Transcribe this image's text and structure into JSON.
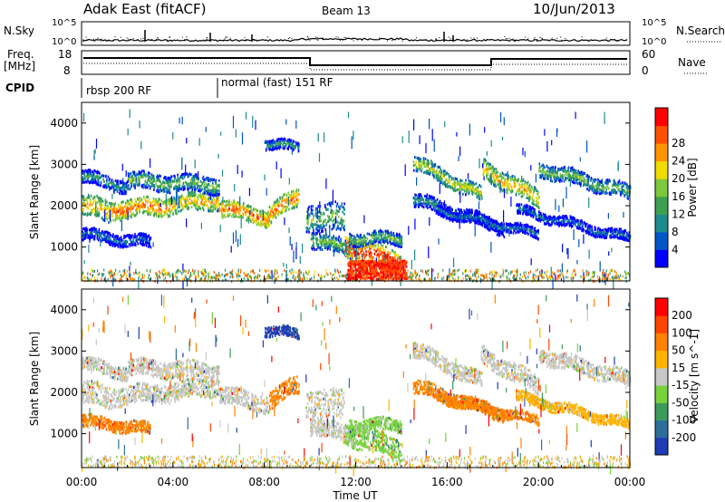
{
  "header": {
    "radar": "Adak East (fitACF)",
    "beam": "Beam 13",
    "date": "10/Jun/2013"
  },
  "noise_panel": {
    "left_label": "N.Sky",
    "right_label": "N.Search",
    "ticks": [
      "10^5",
      "10^0"
    ],
    "right_ticks": [
      "10^5",
      "10^0"
    ]
  },
  "freq_panel": {
    "left_label_1": "Freq.",
    "left_label_2": "[MHz]",
    "left_ticks": [
      "18",
      "8"
    ],
    "right_label": "Nave",
    "right_ticks": [
      "60",
      "0"
    ]
  },
  "cpid": {
    "label": "CPID",
    "segments": [
      {
        "name": "rbsp 200 RF",
        "start_hour": 0
      },
      {
        "name": "normal (fast) 151 RF",
        "start_hour": 6
      }
    ]
  },
  "chart_data": [
    {
      "type": "heatmap",
      "name": "power",
      "ylabel": "Slant Range [km]",
      "ylim": [
        180,
        4500
      ],
      "yticks": [
        1000,
        2000,
        3000,
        4000
      ],
      "xlim_hours": [
        0,
        24
      ],
      "colorbar": {
        "label": "Power [dB]",
        "ticks": [
          "4",
          "8",
          "12",
          "16",
          "20",
          "24",
          "28"
        ],
        "colors": [
          "#0000ff",
          "#0055c8",
          "#1e8c8c",
          "#3ca050",
          "#7dc83c",
          "#f0dc00",
          "#ff9600",
          "#ff5000",
          "#ff0000"
        ]
      }
    },
    {
      "type": "heatmap",
      "name": "velocity",
      "ylabel": "Slant Range [km]",
      "ylim": [
        180,
        4500
      ],
      "yticks": [
        1000,
        2000,
        3000,
        4000
      ],
      "xlim_hours": [
        0,
        24
      ],
      "xlabel": "Time UT",
      "xticks": [
        "00:00",
        "04:00",
        "08:00",
        "12:00",
        "16:00",
        "20:00",
        "00:00"
      ],
      "colorbar": {
        "label": "Velocity [m s^-1]",
        "ticks": [
          "200",
          "100",
          "50",
          "15",
          "-15",
          "-50",
          "-100",
          "-200"
        ],
        "colors": [
          "#1e3cb4",
          "#2d6e9b",
          "#3c9b5a",
          "#78d23c",
          "#c8c8c8",
          "#ffb400",
          "#ff8200",
          "#ff4600",
          "#ff0000"
        ]
      }
    }
  ]
}
